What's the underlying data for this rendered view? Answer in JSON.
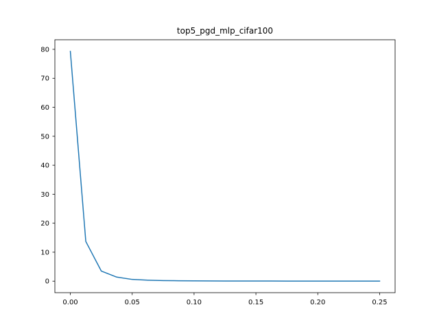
{
  "chart_data": {
    "type": "line",
    "title": "top5_pgd_mlp_cifar100",
    "xlabel": "",
    "ylabel": "",
    "xlim": [
      -0.0125,
      0.2625
    ],
    "ylim": [
      -3.97,
      83.3
    ],
    "grid": false,
    "x_ticks": [
      0.0,
      0.05,
      0.1,
      0.15,
      0.2,
      0.25
    ],
    "x_tick_labels": [
      "0.00",
      "0.05",
      "0.10",
      "0.15",
      "0.20",
      "0.25"
    ],
    "y_ticks": [
      0,
      10,
      20,
      30,
      40,
      50,
      60,
      70,
      80
    ],
    "y_tick_labels": [
      "0",
      "10",
      "20",
      "30",
      "40",
      "50",
      "60",
      "70",
      "80"
    ],
    "series": [
      {
        "color": "#1f77b4",
        "x": [
          0.0,
          0.0125,
          0.025,
          0.0375,
          0.05,
          0.0625,
          0.075,
          0.0875,
          0.1,
          0.1125,
          0.125,
          0.1375,
          0.15,
          0.1625,
          0.175,
          0.1875,
          0.2,
          0.2125,
          0.225,
          0.2375,
          0.25
        ],
        "y": [
          79.3,
          13.7,
          3.5,
          1.4,
          0.6,
          0.35,
          0.2,
          0.15,
          0.1,
          0.08,
          0.05,
          0.05,
          0.05,
          0.04,
          0.03,
          0.03,
          0.03,
          0.02,
          0.02,
          0.02,
          0.02
        ]
      }
    ]
  }
}
